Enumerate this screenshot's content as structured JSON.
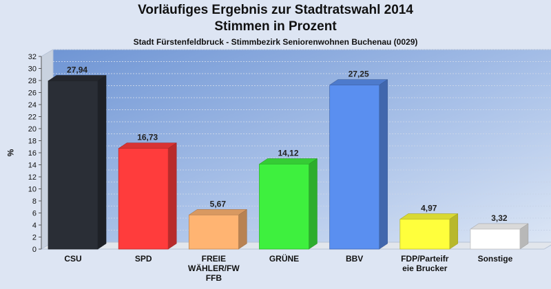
{
  "title": "Vorläufiges Ergebnis zur Stadtratswahl 2014",
  "title2": "Stimmen in Prozent",
  "subtitle": "Stadt Fürstenfeldbruck - Stimmbezirk Seniorenwohnen Buchenau (0029)",
  "chart_data": {
    "type": "bar",
    "title": "Vorläufiges Ergebnis zur Stadtratswahl 2014",
    "ylabel": "%",
    "ylim": [
      0,
      32
    ],
    "yticks": [
      "0",
      "2",
      "4",
      "6",
      "8",
      "10",
      "12",
      "14",
      "16",
      "18",
      "20",
      "22",
      "24",
      "26",
      "28",
      "30",
      "32"
    ],
    "categories": [
      "CSU",
      "SPD",
      "FREIE WÄHLER/FW FFB",
      "GRÜNE",
      "BBV",
      "FDP/Parteifreie Brucker",
      "Sonstige"
    ],
    "category_labels": [
      [
        "CSU"
      ],
      [
        "SPD"
      ],
      [
        "FREIE",
        "WÄHLER/FW",
        "FFB"
      ],
      [
        "GRÜNE"
      ],
      [
        "BBV"
      ],
      [
        "FDP/Parteifr",
        "eie Brucker"
      ],
      [
        "Sonstige"
      ]
    ],
    "values": [
      27.94,
      16.73,
      5.67,
      14.12,
      27.25,
      4.97,
      3.32
    ],
    "value_labels": [
      "27,94",
      "16,73",
      "5,67",
      "14,12",
      "27,25",
      "4,97",
      "3,32"
    ],
    "colors": [
      "#2a2e36",
      "#ff3c3c",
      "#ffb472",
      "#3ef03e",
      "#5a8ff0",
      "#ffff3c",
      "#ffffff"
    ],
    "grid": true
  }
}
